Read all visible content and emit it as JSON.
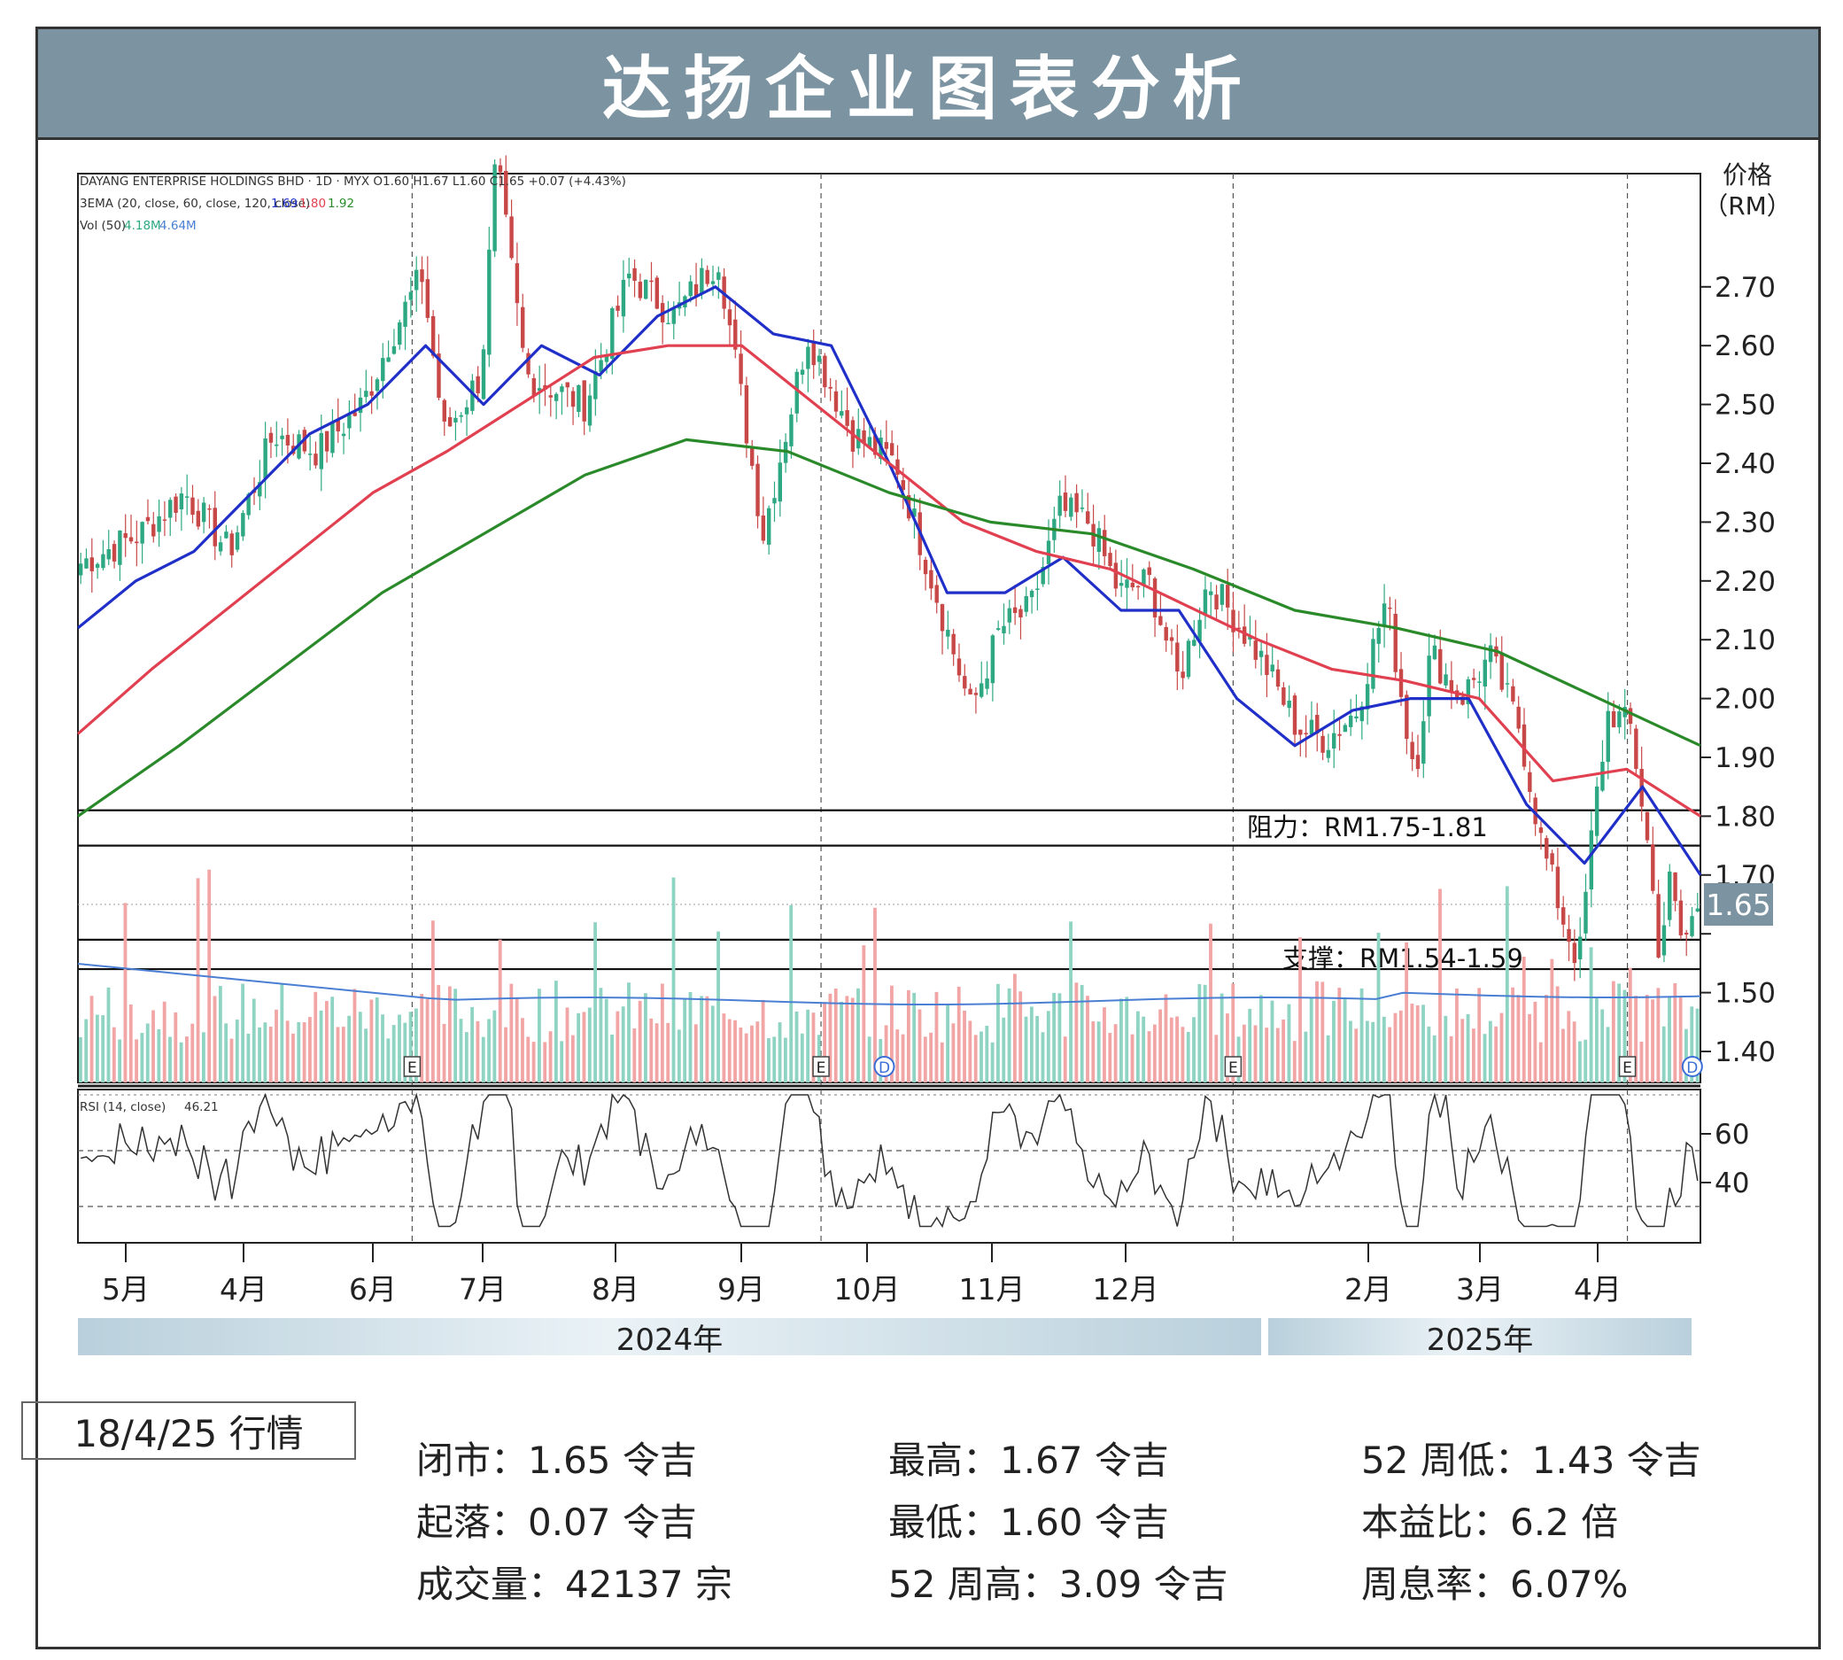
{
  "title": "达扬企业图表分析",
  "price_axis_label": [
    "价格",
    "（RM）"
  ],
  "chart_header": {
    "line1": "DAYANG ENTERPRISE HOLDINGS BHD · 1D · MYX  O1.60  H1.67  L1.60  C1.65  +0.07 (+4.43%)",
    "ema_label": "3EMA (20, close, 60, close, 120, close)",
    "ema_values": [
      "1.69",
      "1.80",
      "1.92"
    ],
    "vol_label": "Vol (50)",
    "vol_values": [
      "4.18M",
      "4.64M"
    ],
    "rsi_label": "RSI (14, close)",
    "rsi_value": "46.21"
  },
  "resistance_label": "阻力：RM1.75-1.81",
  "support_label": "支撑：RM1.54-1.59",
  "last_price_tag": "1.65",
  "months": [
    "5月",
    "4月",
    "6月",
    "7月",
    "8月",
    "9月",
    "10月",
    "11月",
    "12月",
    "2月",
    "3月",
    "4月"
  ],
  "years": [
    "2024年",
    "2025年"
  ],
  "markers": [
    "E",
    "E",
    "D",
    "E",
    "E",
    "D"
  ],
  "info": {
    "date": "18/4/25 行情",
    "close": "闭市：1.65 令吉",
    "change": "起落：0.07 令吉",
    "volume": "成交量：42137 宗",
    "high": "最高：1.67 令吉",
    "low": "最低：1.60 令吉",
    "high52": "52 周高：3.09 令吉",
    "low52": "52 周低：1.43 令吉",
    "pe": "本益比：6.2 倍",
    "yield": "周息率：6.07%"
  },
  "colors": {
    "header": "#7c94a1",
    "ema20": "#1f2fc8",
    "ema60": "#e0404f",
    "ema120": "#2a8a2a",
    "up": "#2ea882",
    "down": "#c84848",
    "vol_up": "#8fd3c3",
    "vol_down": "#f2a5a5",
    "vol_ma": "#4a7fd4"
  },
  "chart_data": {
    "type": "candlestick",
    "title": "达扬企业图表分析",
    "ylabel": "价格（RM）",
    "ylim": [
      1.35,
      2.95
    ],
    "yticks": [
      1.4,
      1.5,
      1.6,
      1.7,
      1.8,
      1.9,
      2.0,
      2.1,
      2.2,
      2.3,
      2.4,
      2.5,
      2.6,
      2.7
    ],
    "ytick_labels": [
      "1.40",
      "1.50",
      "",
      "1.70",
      "1.80",
      "1.90",
      "2.00",
      "2.10",
      "2.20",
      "2.30",
      "2.40",
      "2.50",
      "2.60",
      "2.70"
    ],
    "resistance": [
      1.75,
      1.81
    ],
    "support": [
      1.54,
      1.59
    ],
    "last_close": 1.65,
    "close_path": [
      [
        0,
        2.23
      ],
      [
        0.04,
        2.28
      ],
      [
        0.07,
        2.35
      ],
      [
        0.1,
        2.25
      ],
      [
        0.13,
        2.45
      ],
      [
        0.16,
        2.42
      ],
      [
        0.19,
        2.5
      ],
      [
        0.21,
        2.62
      ],
      [
        0.23,
        2.72
      ],
      [
        0.245,
        2.45
      ],
      [
        0.27,
        2.55
      ],
      [
        0.28,
        2.92
      ],
      [
        0.3,
        2.55
      ],
      [
        0.34,
        2.5
      ],
      [
        0.37,
        2.72
      ],
      [
        0.4,
        2.65
      ],
      [
        0.43,
        2.75
      ],
      [
        0.46,
        2.28
      ],
      [
        0.49,
        2.62
      ],
      [
        0.52,
        2.45
      ],
      [
        0.55,
        2.4
      ],
      [
        0.58,
        2.15
      ],
      [
        0.6,
        1.98
      ],
      [
        0.62,
        2.12
      ],
      [
        0.64,
        2.15
      ],
      [
        0.66,
        2.32
      ],
      [
        0.68,
        2.3
      ],
      [
        0.7,
        2.18
      ],
      [
        0.72,
        2.2
      ],
      [
        0.74,
        2.03
      ],
      [
        0.76,
        2.2
      ],
      [
        0.78,
        2.13
      ],
      [
        0.8,
        2.05
      ],
      [
        0.82,
        1.95
      ],
      [
        0.84,
        1.93
      ],
      [
        0.86,
        1.98
      ],
      [
        0.88,
        2.17
      ],
      [
        0.895,
        1.93
      ],
      [
        0.9,
        1.88
      ],
      [
        0.91,
        2.08
      ],
      [
        0.93,
        2.0
      ],
      [
        0.95,
        2.07
      ],
      [
        0.97,
        1.95
      ],
      [
        0.985,
        1.75
      ],
      [
        1.0,
        1.62
      ],
      [
        1.01,
        1.55
      ],
      [
        1.02,
        1.8
      ],
      [
        1.03,
        1.98
      ],
      [
        1.045,
        1.95
      ],
      [
        1.055,
        1.78
      ],
      [
        1.065,
        1.55
      ],
      [
        1.07,
        1.7
      ],
      [
        1.08,
        1.58
      ],
      [
        1.09,
        1.65
      ]
    ],
    "ema20": [
      2.12,
      2.2,
      2.25,
      2.35,
      2.45,
      2.5,
      2.6,
      2.5,
      2.6,
      2.55,
      2.65,
      2.7,
      2.62,
      2.6,
      2.4,
      2.18,
      2.18,
      2.24,
      2.15,
      2.15,
      2.0,
      1.92,
      1.98,
      2.0,
      2.0,
      1.82,
      1.72,
      1.85,
      1.7
    ],
    "ema60": [
      1.94,
      2.05,
      2.15,
      2.25,
      2.35,
      2.42,
      2.5,
      2.58,
      2.6,
      2.6,
      2.5,
      2.4,
      2.3,
      2.25,
      2.22,
      2.16,
      2.1,
      2.05,
      2.03,
      2.0,
      1.86,
      1.88,
      1.8
    ],
    "ema120": [
      1.8,
      1.92,
      2.05,
      2.18,
      2.28,
      2.38,
      2.44,
      2.42,
      2.35,
      2.3,
      2.28,
      2.22,
      2.15,
      2.12,
      2.08,
      2.0,
      1.92
    ],
    "rsi": {
      "ylim": [
        15,
        85
      ],
      "levels": [
        30,
        70
      ],
      "yticks": [
        40,
        60
      ],
      "last": 46.21
    },
    "x_categories": [
      "5月",
      "4月",
      "6月",
      "7月",
      "8月",
      "9月",
      "10月",
      "11月",
      "12月",
      "2月",
      "3月",
      "4月"
    ]
  }
}
